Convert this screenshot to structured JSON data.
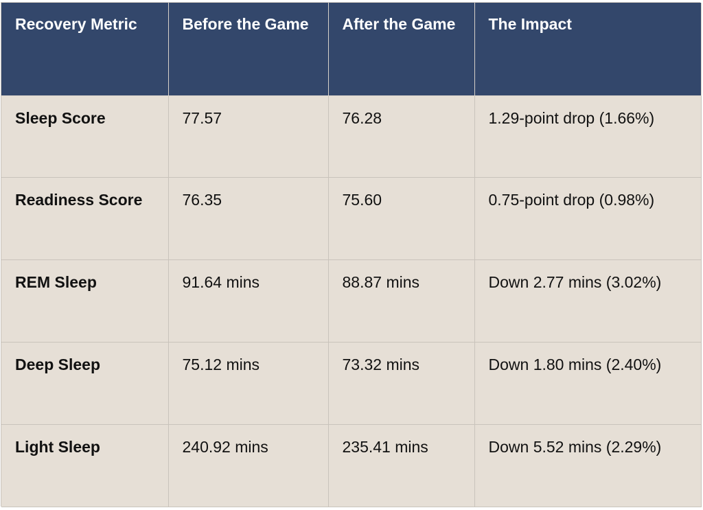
{
  "table": {
    "headers": [
      "Recovery Metric",
      "Before the Game",
      "After the Game",
      "The Impact"
    ],
    "rows": [
      [
        "Sleep Score",
        "77.57",
        "76.28",
        "1.29-point drop (1.66%)"
      ],
      [
        "Readiness Score",
        "76.35",
        "75.60",
        "0.75-point drop (0.98%)"
      ],
      [
        "REM Sleep",
        "91.64 mins",
        "88.87 mins",
        "Down 2.77 mins (3.02%)"
      ],
      [
        "Deep Sleep",
        "75.12 mins",
        "73.32 mins",
        "Down 1.80 mins (2.40%)"
      ],
      [
        "Light Sleep",
        "240.92 mins",
        "235.41 mins",
        "Down 5.52 mins (2.29%)"
      ]
    ]
  },
  "colors": {
    "header_bg": "#33476b",
    "header_text": "#ffffff",
    "cell_bg": "#e6dfd6",
    "cell_text": "#111111",
    "grid_line": "#c9c3bb"
  }
}
